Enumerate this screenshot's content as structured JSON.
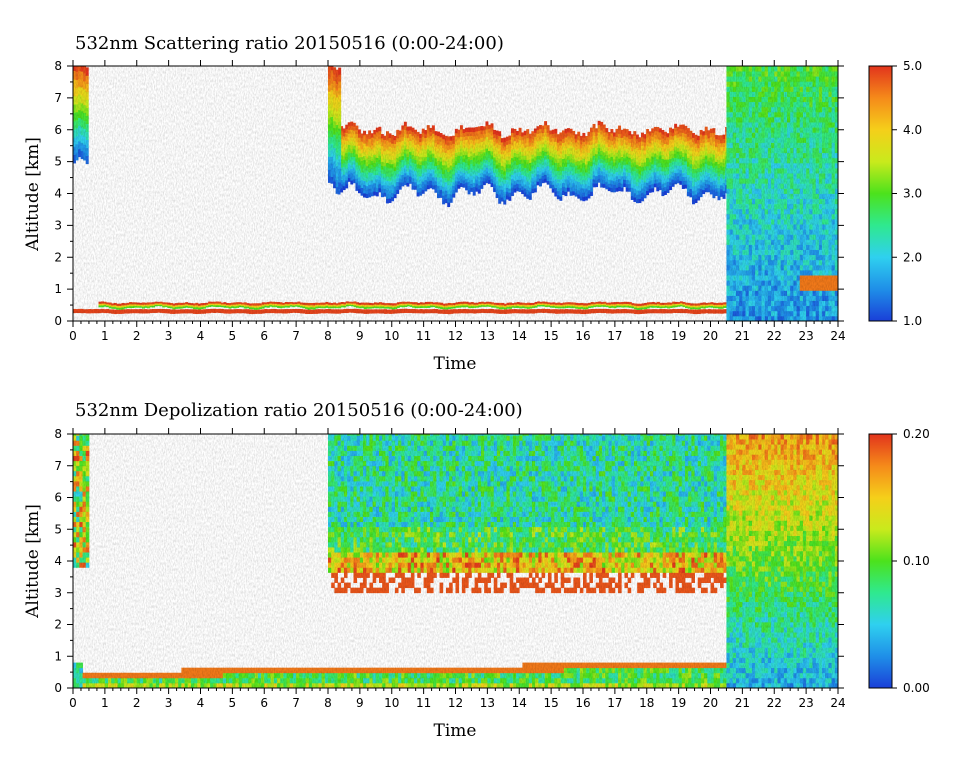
{
  "chart_data": [
    {
      "type": "heatmap",
      "title": "532nm Scattering ratio  20150516 (0:00-24:00)",
      "xlabel": "Time",
      "ylabel": "Altitude [km]",
      "xlim": [
        0,
        24
      ],
      "ylim": [
        0,
        8
      ],
      "xticks": [
        "0",
        "1",
        "2",
        "3",
        "4",
        "5",
        "6",
        "7",
        "8",
        "9",
        "10",
        "11",
        "12",
        "13",
        "14",
        "15",
        "16",
        "17",
        "18",
        "19",
        "20",
        "21",
        "22",
        "23",
        "24"
      ],
      "yticks": [
        "0",
        "1",
        "2",
        "3",
        "4",
        "5",
        "6",
        "7",
        "8"
      ],
      "colorbar": {
        "range": [
          1.0,
          5.0
        ],
        "ticks": [
          "1.0",
          "2.0",
          "3.0",
          "4.0",
          "5.0"
        ],
        "tick_values": [
          1.0,
          2.0,
          3.0,
          4.0,
          5.0
        ]
      },
      "features": {
        "cloud_band": {
          "time": [
            8.0,
            20.5
          ],
          "base_km": 4.0,
          "top_km": 6.0,
          "onset_top_km": 8.0
        },
        "low_layer": {
          "time": [
            0.0,
            20.5
          ],
          "altitude_km": [
            0.25,
            0.6
          ]
        },
        "saturated_segment": {
          "time": [
            20.5,
            24.0
          ],
          "value_range": [
            1.6,
            3.5
          ]
        }
      }
    },
    {
      "type": "heatmap",
      "title": "532nm Depolization ratio  20150516 (0:00-24:00)",
      "xlabel": "Time",
      "ylabel": "Altitude [km]",
      "xlim": [
        0,
        24
      ],
      "ylim": [
        0,
        8
      ],
      "xticks": [
        "0",
        "1",
        "2",
        "3",
        "4",
        "5",
        "6",
        "7",
        "8",
        "9",
        "10",
        "11",
        "12",
        "13",
        "14",
        "15",
        "16",
        "17",
        "18",
        "19",
        "20",
        "21",
        "22",
        "23",
        "24"
      ],
      "yticks": [
        "0",
        "1",
        "2",
        "3",
        "4",
        "5",
        "6",
        "7",
        "8"
      ],
      "colorbar": {
        "range": [
          0.0,
          0.2
        ],
        "ticks": [
          "0.00",
          "0.10",
          "0.20"
        ],
        "tick_values": [
          0.0,
          0.1,
          0.2
        ]
      },
      "features": {
        "high_depol_region": {
          "time": [
            8.0,
            20.5
          ],
          "base_km": 3.0,
          "top_km": 8.0
        },
        "boundary_layer": {
          "time": [
            0.0,
            20.5
          ],
          "altitude_km": [
            0.0,
            0.8
          ]
        },
        "late_segment": {
          "time": [
            20.5,
            24.0
          ],
          "top_value": 0.17,
          "bottom_value": 0.04
        }
      }
    }
  ],
  "colors": {
    "colormap": [
      "#1a3fd8",
      "#1f8fe8",
      "#2fd0ef",
      "#2fe98f",
      "#4ce21c",
      "#c9ea1c",
      "#f5cf1a",
      "#f58a1a",
      "#e2341c"
    ]
  }
}
